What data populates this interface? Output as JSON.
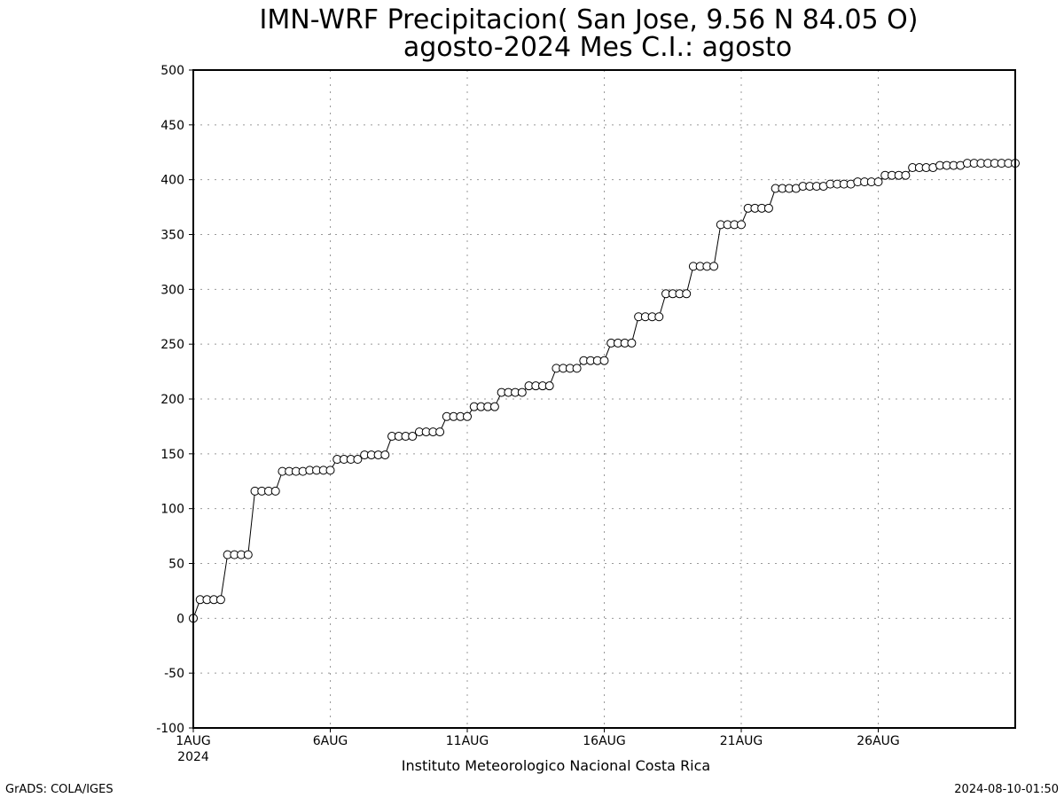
{
  "chart_data": {
    "type": "line",
    "title": "IMN-WRF  Precipitacion( San Jose, 9.56  N 84.05  O)",
    "subtitle": "agosto-2024 Mes C.I.: agosto",
    "xlabel": "Instituto Meteorologico Nacional Costa Rica",
    "ylabel": "",
    "ylim": [
      -100,
      500
    ],
    "xlim_days": [
      1,
      31
    ],
    "grid": true,
    "line_color": "#000000",
    "marker": "open-circle",
    "y_ticks": [
      "500",
      "450",
      "400",
      "350",
      "300",
      "250",
      "200",
      "150",
      "100",
      "50",
      "0",
      "-50",
      "-100"
    ],
    "x_ticks": [
      {
        "label": "1AUG",
        "day": 1,
        "sub": "2024"
      },
      {
        "label": "6AUG",
        "day": 6,
        "sub": ""
      },
      {
        "label": "11AUG",
        "day": 11,
        "sub": ""
      },
      {
        "label": "16AUG",
        "day": 16,
        "sub": ""
      },
      {
        "label": "21AUG",
        "day": 21,
        "sub": ""
      },
      {
        "label": "26AUG",
        "day": 26,
        "sub": ""
      }
    ],
    "series": [
      {
        "x_days": [
          1,
          1.25,
          1.5,
          1.75,
          2,
          2.25,
          2.5,
          2.75,
          3,
          3.25,
          3.5,
          3.75,
          4,
          4.25,
          4.5,
          4.75,
          5,
          5.25,
          5.5,
          5.75,
          6,
          6.25,
          6.5,
          6.75,
          7,
          7.25,
          7.5,
          7.75,
          8,
          8.25,
          8.5,
          8.75,
          9,
          9.25,
          9.5,
          9.75,
          10,
          10.25,
          10.5,
          10.75,
          11,
          11.25,
          11.5,
          11.75,
          12,
          12.25,
          12.5,
          12.75,
          13,
          13.25,
          13.5,
          13.75,
          14,
          14.25,
          14.5,
          14.75,
          15,
          15.25,
          15.5,
          15.75,
          16,
          16.25,
          16.5,
          16.75,
          17,
          17.25,
          17.5,
          17.75,
          18,
          18.25,
          18.5,
          18.75,
          19,
          19.25,
          19.5,
          19.75,
          20,
          20.25,
          20.5,
          20.75,
          21,
          21.25,
          21.5,
          21.75,
          22,
          22.25,
          22.5,
          22.75,
          23,
          23.25,
          23.5,
          23.75,
          24,
          24.25,
          24.5,
          24.75,
          25,
          25.25,
          25.5,
          25.75,
          26,
          26.25,
          26.5,
          26.75,
          27,
          27.25,
          27.5,
          27.75,
          28,
          28.25,
          28.5,
          28.75,
          29,
          29.25,
          29.5,
          29.75,
          30,
          30.25,
          30.5,
          30.75,
          31
        ],
        "values": [
          0,
          17,
          17,
          17,
          17,
          58,
          58,
          58,
          58,
          116,
          116,
          116,
          116,
          134,
          134,
          134,
          134,
          135,
          135,
          135,
          135,
          145,
          145,
          145,
          145,
          149,
          149,
          149,
          149,
          166,
          166,
          166,
          166,
          170,
          170,
          170,
          170,
          184,
          184,
          184,
          184,
          193,
          193,
          193,
          193,
          206,
          206,
          206,
          206,
          212,
          212,
          212,
          212,
          228,
          228,
          228,
          228,
          235,
          235,
          235,
          235,
          251,
          251,
          251,
          251,
          275,
          275,
          275,
          275,
          296,
          296,
          296,
          296,
          321,
          321,
          321,
          321,
          359,
          359,
          359,
          359,
          374,
          374,
          374,
          374,
          392,
          392,
          392,
          392,
          394,
          394,
          394,
          394,
          396,
          396,
          396,
          396,
          398,
          398,
          398,
          398,
          404,
          404,
          404,
          404,
          411,
          411,
          411,
          411,
          413,
          413,
          413,
          413,
          415,
          415,
          415,
          415,
          415,
          415,
          415,
          415
        ]
      }
    ]
  },
  "footer": {
    "left": "GrADS: COLA/IGES",
    "right": "2024-08-10-01:50"
  }
}
